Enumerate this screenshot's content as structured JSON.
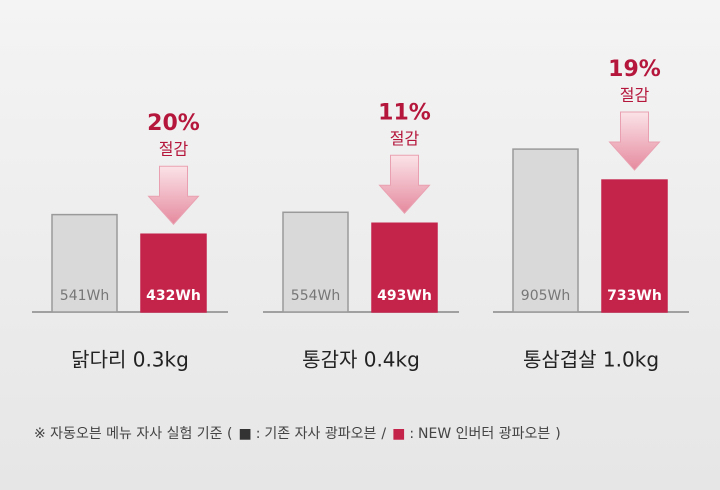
{
  "chart_data": {
    "type": "bar",
    "categories": [
      "닭다리 0.3kg",
      "통감자 0.4kg",
      "통삼겹살 1.0kg"
    ],
    "series": [
      {
        "name": "기존 자사 광파오븐",
        "color": "#d9d9d9",
        "values": [
          541,
          554,
          905
        ],
        "value_labels": [
          "541Wh",
          "554Wh",
          "905Wh"
        ]
      },
      {
        "name": "NEW 인버터 광파오븐",
        "color": "#c4234a",
        "values": [
          432,
          493,
          733
        ],
        "value_labels": [
          "432Wh",
          "493Wh",
          "733Wh"
        ]
      }
    ],
    "reductions": {
      "values": [
        20,
        11,
        19
      ],
      "value_labels": [
        "20%",
        "11%",
        "19%"
      ],
      "text": "절감"
    },
    "legend_prefix": "※ 자동오븐 메뉴 자사 실험 기준 (",
    "legend_separator": ":",
    "legend_divider": "/",
    "legend_suffix": ")"
  }
}
